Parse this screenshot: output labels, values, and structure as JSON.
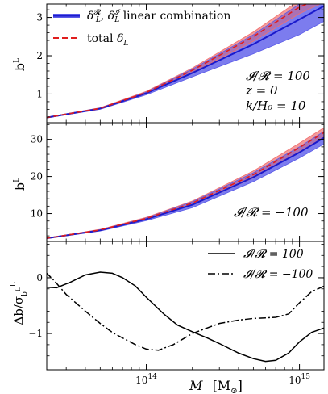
{
  "chart_data": [
    {
      "type": "line",
      "panel": "top",
      "ylabel": "b",
      "ylabel_sup": "L",
      "ylim": [
        0.25,
        3.35
      ],
      "xlim_log10": [
        13.35,
        15.16
      ],
      "yticks": [
        1,
        2,
        3
      ],
      "grid": false,
      "legend_position": "top-left",
      "legend": [
        {
          "style": "solid-blue-band",
          "text": "δ_L^R, δ_L^I  linear combination",
          "main": "δ",
          "sub1": "L",
          "sup1": "𝓡",
          "sep": ",  ",
          "main2": "δ",
          "sub2": "L",
          "sup2": "𝓘",
          "rest": "  linear combination"
        },
        {
          "style": "dashed-red",
          "text": "total δ_L",
          "main": "total ",
          "sym": "δ",
          "sub": "L"
        }
      ],
      "annotations": [
        "𝓘/𝓡 = 100",
        "z = 0",
        "k/H₀ = 10"
      ],
      "series": [
        {
          "role": "blue-line",
          "color": "#1d1dcf",
          "x": [
            22000000000000.0,
            50000000000000.0,
            100000000000000.0,
            200000000000000.0,
            500000000000000.0,
            1000000000000000.0,
            1450000000000000.0
          ],
          "y": [
            0.38,
            0.62,
            1.02,
            1.55,
            2.3,
            2.95,
            3.3
          ]
        },
        {
          "role": "blue-band-upper",
          "color": "#5a5ae8",
          "x": [
            22000000000000.0,
            50000000000000.0,
            100000000000000.0,
            200000000000000.0,
            500000000000000.0,
            1000000000000000.0,
            1450000000000000.0
          ],
          "y": [
            0.39,
            0.64,
            1.06,
            1.65,
            2.55,
            3.35,
            3.6
          ]
        },
        {
          "role": "blue-band-lower",
          "color": "#5a5ae8",
          "x": [
            22000000000000.0,
            50000000000000.0,
            100000000000000.0,
            200000000000000.0,
            500000000000000.0,
            1000000000000000.0,
            1450000000000000.0
          ],
          "y": [
            0.37,
            0.6,
            0.98,
            1.45,
            2.05,
            2.55,
            2.9
          ]
        },
        {
          "role": "red-band-upper",
          "color": "#f07070",
          "x": [
            22000000000000.0,
            50000000000000.0,
            100000000000000.0,
            200000000000000.0,
            500000000000000.0,
            1000000000000000.0,
            1450000000000000.0
          ],
          "y": [
            0.39,
            0.64,
            1.07,
            1.68,
            2.62,
            3.45,
            3.7
          ]
        },
        {
          "role": "red-band-lower",
          "color": "#f07070",
          "x": [
            22000000000000.0,
            50000000000000.0,
            100000000000000.0,
            200000000000000.0,
            500000000000000.0,
            1000000000000000.0,
            1450000000000000.0
          ],
          "y": [
            0.37,
            0.61,
            1.01,
            1.56,
            2.38,
            3.1,
            3.4
          ]
        },
        {
          "role": "red-dashed",
          "color": "#e01e1e",
          "x": [
            22000000000000.0,
            50000000000000.0,
            100000000000000.0,
            200000000000000.0,
            500000000000000.0,
            1000000000000000.0,
            1450000000000000.0
          ],
          "y": [
            0.38,
            0.625,
            1.04,
            1.62,
            2.5,
            3.27,
            3.55
          ]
        }
      ]
    },
    {
      "type": "line",
      "panel": "middle",
      "ylabel": "b",
      "ylabel_sup": "L",
      "ylim": [
        2.5,
        34.5
      ],
      "xlim_log10": [
        13.35,
        15.16
      ],
      "yticks": [
        10,
        20,
        30
      ],
      "grid": false,
      "annotations": [
        "𝓘/𝓡 = −100"
      ],
      "series": [
        {
          "role": "blue-line",
          "color": "#1d1dcf",
          "x": [
            22000000000000.0,
            50000000000000.0,
            100000000000000.0,
            200000000000000.0,
            500000000000000.0,
            1000000000000000.0,
            1450000000000000.0
          ],
          "y": [
            3.3,
            5.5,
            8.5,
            12.4,
            19.8,
            26.5,
            30.5
          ]
        },
        {
          "role": "blue-band-upper",
          "color": "#5a5ae8",
          "x": [
            22000000000000.0,
            50000000000000.0,
            100000000000000.0,
            200000000000000.0,
            500000000000000.0,
            1000000000000000.0,
            1450000000000000.0
          ],
          "y": [
            3.35,
            5.7,
            8.9,
            13.2,
            21.0,
            28.0,
            32.2
          ]
        },
        {
          "role": "blue-band-lower",
          "color": "#5a5ae8",
          "x": [
            22000000000000.0,
            50000000000000.0,
            100000000000000.0,
            200000000000000.0,
            500000000000000.0,
            1000000000000000.0,
            1450000000000000.0
          ],
          "y": [
            3.25,
            5.3,
            8.1,
            11.6,
            18.6,
            25.0,
            28.8
          ]
        },
        {
          "role": "red-band-upper",
          "color": "#f07070",
          "x": [
            22000000000000.0,
            50000000000000.0,
            100000000000000.0,
            200000000000000.0,
            500000000000000.0,
            1000000000000000.0,
            1450000000000000.0
          ],
          "y": [
            3.35,
            5.75,
            9.0,
            13.4,
            21.5,
            29.0,
            33.2
          ]
        },
        {
          "role": "red-band-lower",
          "color": "#f07070",
          "x": [
            22000000000000.0,
            50000000000000.0,
            100000000000000.0,
            200000000000000.0,
            500000000000000.0,
            1000000000000000.0,
            1450000000000000.0
          ],
          "y": [
            3.25,
            5.45,
            8.4,
            12.3,
            19.6,
            26.6,
            30.6
          ]
        },
        {
          "role": "red-dashed",
          "color": "#e01e1e",
          "x": [
            22000000000000.0,
            50000000000000.0,
            100000000000000.0,
            200000000000000.0,
            500000000000000.0,
            1000000000000000.0,
            1450000000000000.0
          ],
          "y": [
            3.3,
            5.6,
            8.7,
            12.85,
            20.5,
            27.8,
            31.9
          ]
        }
      ]
    },
    {
      "type": "line",
      "panel": "bottom",
      "ylabel": "Δb/σ",
      "ylabel_sup": "L",
      "ylabel_subsup": "L",
      "ylabel_sub": "b",
      "ylim": [
        -1.65,
        0.65
      ],
      "xlim_log10": [
        13.35,
        15.16
      ],
      "yticks": [
        -1,
        0
      ],
      "xticks": [
        {
          "value": 100000000000000.0,
          "base": "10",
          "exp": "14"
        },
        {
          "value": 1000000000000000.0,
          "base": "10",
          "exp": "15"
        }
      ],
      "xlabel": "M  [M⊙]",
      "xlabel_main": "M",
      "xlabel_unit": "[M",
      "xlabel_unit_end": "]",
      "grid": false,
      "legend_position": "top-right",
      "legend": [
        {
          "style": "solid-black",
          "text": "𝓘/𝓡 = 100"
        },
        {
          "style": "dashdot-black",
          "text": "𝓘/𝓡 = −100"
        }
      ],
      "series": [
        {
          "name": "𝓘/𝓡 = 100",
          "color": "#000000",
          "dash": "solid",
          "x": [
            22000000000000.0,
            26000000000000.0,
            32000000000000.0,
            40000000000000.0,
            50000000000000.0,
            60000000000000.0,
            70000000000000.0,
            85000000000000.0,
            100000000000000.0,
            130000000000000.0,
            160000000000000.0,
            200000000000000.0,
            250000000000000.0,
            300000000000000.0,
            400000000000000.0,
            500000000000000.0,
            600000000000000.0,
            700000000000000.0,
            850000000000000.0,
            1000000000000000.0,
            1200000000000000.0,
            1450000000000000.0
          ],
          "y": [
            -0.17,
            -0.18,
            -0.08,
            0.05,
            0.1,
            0.08,
            0.0,
            -0.15,
            -0.35,
            -0.65,
            -0.85,
            -0.97,
            -1.08,
            -1.18,
            -1.35,
            -1.45,
            -1.5,
            -1.48,
            -1.35,
            -1.15,
            -0.98,
            -0.9
          ]
        },
        {
          "name": "𝓘/𝓡 = −100",
          "color": "#000000",
          "dash": "dashdot",
          "x": [
            22000000000000.0,
            25000000000000.0,
            30000000000000.0,
            40000000000000.0,
            50000000000000.0,
            60000000000000.0,
            70000000000000.0,
            85000000000000.0,
            100000000000000.0,
            120000000000000.0,
            150000000000000.0,
            200000000000000.0,
            250000000000000.0,
            300000000000000.0,
            400000000000000.0,
            500000000000000.0,
            600000000000000.0,
            700000000000000.0,
            850000000000000.0,
            1000000000000000.0,
            1200000000000000.0,
            1450000000000000.0
          ],
          "y": [
            0.1,
            -0.05,
            -0.3,
            -0.6,
            -0.82,
            -0.98,
            -1.08,
            -1.2,
            -1.28,
            -1.3,
            -1.2,
            -1.0,
            -0.9,
            -0.82,
            -0.76,
            -0.73,
            -0.72,
            -0.71,
            -0.65,
            -0.45,
            -0.25,
            -0.15
          ]
        }
      ]
    }
  ]
}
